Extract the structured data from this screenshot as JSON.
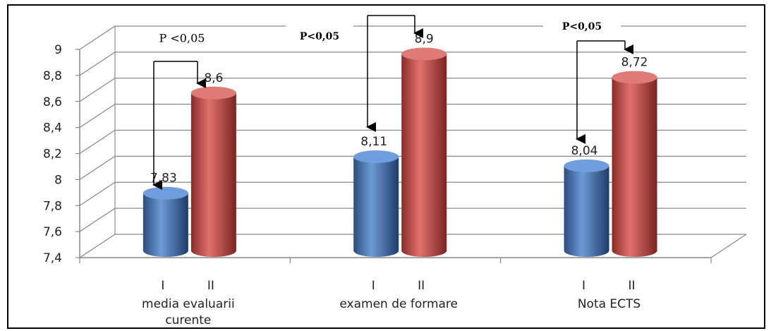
{
  "chart_data": {
    "type": "bar",
    "title": "",
    "xlabel": "",
    "ylabel": "",
    "ylim": [
      7.4,
      9
    ],
    "yticks": [
      "7,4",
      "7,6",
      "7,8",
      "8",
      "8,2",
      "8,4",
      "8,6",
      "8,8",
      "9"
    ],
    "grid": true,
    "categories": [
      "media  evaluarii curente",
      "examen de formare",
      "Nota ECTS"
    ],
    "category_lines": [
      [
        "media  evaluarii",
        "curente"
      ],
      [
        "examen de formare"
      ],
      [
        "Nota ECTS"
      ]
    ],
    "subgroup_labels": [
      "I",
      "II"
    ],
    "series": [
      {
        "values": [
          7.83,
          8.11,
          8.04
        ],
        "labels": [
          "7,83",
          "8,11",
          "8,04"
        ],
        "color": "#4f81bd"
      },
      {
        "values": [
          8.6,
          8.9,
          8.72
        ],
        "labels": [
          "8,6",
          "8,9",
          "8,72"
        ],
        "color": "#c0504d"
      }
    ],
    "annotations": [
      "P <0,05",
      "P<0,05",
      "P<0,05"
    ]
  }
}
